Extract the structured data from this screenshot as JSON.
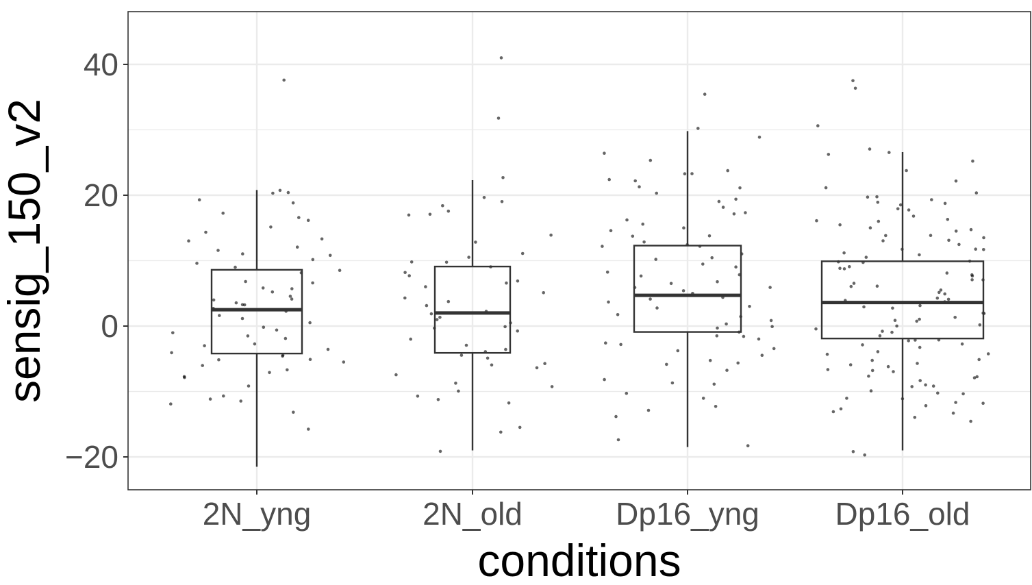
{
  "chart_data": {
    "type": "boxplot",
    "xlabel": "conditions",
    "ylabel": "sensig_150_v2",
    "ylim": [
      -25,
      48
    ],
    "yticks": [
      -20,
      0,
      20,
      40
    ],
    "ytick_labels": [
      "−20",
      "0",
      "20",
      "40"
    ],
    "minor_yticks": [
      -10,
      10,
      30
    ],
    "categories": [
      "2N_yng",
      "2N_old",
      "Dp16_yng",
      "Dp16_old"
    ],
    "grid": true,
    "theme": "bw",
    "colors": {
      "box_line": "#333333",
      "point": "#000000",
      "grid": "#ebebeb",
      "panel_border": "#333333",
      "tick_text": "#4d4d4d"
    },
    "boxes": [
      {
        "category": "2N_yng",
        "whisker_low": -21.5,
        "q1": -4.2,
        "median": 2.5,
        "q3": 8.6,
        "whisker_high": 20.8
      },
      {
        "category": "2N_old",
        "whisker_low": -19.0,
        "q1": -4.1,
        "median": 2.0,
        "q3": 9.1,
        "whisker_high": 22.3
      },
      {
        "category": "Dp16_yng",
        "whisker_low": -18.5,
        "q1": -0.9,
        "median": 4.7,
        "q3": 12.3,
        "whisker_high": 29.8
      },
      {
        "category": "Dp16_old",
        "whisker_low": -19.0,
        "q1": -1.9,
        "median": 3.6,
        "q3": 9.9,
        "whisker_high": 26.6
      }
    ],
    "points": [
      {
        "category": "2N_yng",
        "values": [
          37.5,
          21.0,
          20.5,
          19.5,
          19.0,
          16.5,
          16.0,
          15.0,
          14.5,
          13.5,
          13.0,
          12.0,
          11.5,
          11.0,
          11.0,
          10.0,
          9.5,
          9.0,
          8.5,
          8.0,
          7.0,
          6.5,
          6.0,
          5.5,
          5.0,
          4.5,
          4.0,
          3.5,
          3.5,
          3.0,
          2.5,
          2.0,
          1.5,
          1.0,
          0.5,
          0.0,
          -0.5,
          -1.0,
          -1.5,
          -2.0,
          -2.5,
          -3.0,
          -3.5,
          -4.0,
          -4.5,
          -5.0,
          -5.0,
          -5.5,
          -6.0,
          -6.5,
          -7.0,
          -7.5,
          -8.0,
          -9.0,
          -10.5,
          -11.0,
          -11.5,
          -12.0,
          -13.0,
          -15.5,
          20.5,
          17.0,
          4.0,
          -4.5
        ]
      },
      {
        "category": "2N_old",
        "values": [
          41.0,
          32.0,
          22.5,
          19.5,
          19.0,
          18.5,
          17.5,
          17.0,
          17.0,
          14.0,
          13.0,
          11.0,
          10.5,
          10.0,
          9.5,
          9.0,
          8.0,
          7.5,
          7.0,
          6.5,
          6.0,
          5.0,
          4.5,
          4.0,
          3.0,
          2.5,
          2.0,
          1.5,
          1.0,
          0.5,
          0.0,
          -0.5,
          -1.0,
          -2.0,
          -3.0,
          -3.5,
          -4.0,
          -4.5,
          -5.0,
          -5.5,
          -6.0,
          -6.5,
          -7.5,
          -8.5,
          -9.5,
          -10.0,
          -10.5,
          -11.0,
          -11.5,
          -15.5,
          -16.0,
          -19.0
        ]
      },
      {
        "category": "Dp16_yng",
        "values": [
          35.5,
          30.0,
          29.0,
          26.5,
          25.5,
          24.0,
          23.5,
          22.0,
          21.5,
          21.0,
          20.5,
          19.5,
          18.0,
          17.5,
          17.0,
          16.0,
          15.5,
          15.0,
          14.5,
          14.0,
          13.5,
          13.0,
          12.5,
          12.0,
          11.0,
          10.5,
          10.0,
          9.5,
          9.0,
          8.5,
          8.0,
          7.5,
          7.0,
          6.5,
          6.0,
          5.5,
          5.0,
          4.5,
          4.0,
          3.5,
          3.0,
          2.5,
          2.0,
          1.5,
          1.0,
          0.5,
          0.0,
          -0.5,
          -1.0,
          -1.5,
          -2.0,
          -2.5,
          -3.0,
          -3.5,
          -4.0,
          -4.5,
          -5.0,
          -5.5,
          -6.0,
          -7.0,
          -8.0,
          -8.5,
          -9.0,
          -10.5,
          -11.0,
          -12.5,
          -13.0,
          -14.0,
          -17.5,
          -18.5,
          23.5,
          22.5,
          19.0,
          12.0,
          6.0,
          -1.5
        ]
      },
      {
        "category": "Dp16_old",
        "values": [
          37.5,
          36.5,
          30.5,
          27.0,
          26.5,
          26.0,
          25.0,
          24.0,
          22.0,
          21.0,
          20.5,
          20.0,
          19.5,
          19.0,
          18.5,
          18.0,
          17.5,
          17.0,
          16.5,
          16.0,
          15.5,
          15.0,
          14.5,
          14.0,
          13.5,
          13.0,
          12.5,
          12.0,
          11.5,
          11.0,
          10.5,
          10.0,
          9.5,
          9.0,
          8.5,
          8.0,
          7.5,
          7.0,
          6.5,
          6.0,
          5.5,
          5.0,
          4.5,
          4.0,
          3.5,
          3.0,
          2.5,
          2.0,
          1.5,
          1.0,
          0.5,
          0.0,
          -0.5,
          -1.0,
          -1.5,
          -2.0,
          -2.5,
          -3.0,
          -3.5,
          -4.0,
          -4.5,
          -5.0,
          -5.5,
          -6.0,
          -6.5,
          -7.0,
          -7.5,
          -8.0,
          -8.5,
          -9.0,
          -9.5,
          -10.0,
          -10.5,
          -11.0,
          -11.5,
          -12.0,
          -12.5,
          -13.0,
          -13.5,
          -14.0,
          -14.5,
          -19.0,
          -19.5,
          19.5,
          18.5,
          15.0,
          13.0,
          11.0,
          9.0,
          7.0,
          5.0,
          3.0,
          1.0,
          -1.0,
          -3.0,
          -5.0,
          -7.0,
          -9.0,
          -11.0,
          16.0,
          12.0,
          8.0,
          4.0,
          0.0,
          -4.0,
          -8.0,
          -12.0,
          14.0,
          10.0,
          6.0,
          2.0,
          -2.0,
          -6.0,
          -10.0
        ]
      }
    ]
  }
}
